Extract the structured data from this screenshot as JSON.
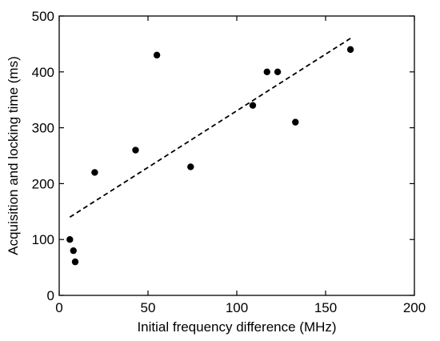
{
  "chart_data": {
    "type": "scatter",
    "title": "",
    "xlabel": "Initial frequency difference (MHz)",
    "ylabel": "Acquisition and locking time (ms)",
    "xlim": [
      0,
      200
    ],
    "ylim": [
      0,
      500
    ],
    "xticks": [
      0,
      50,
      100,
      150,
      200
    ],
    "yticks": [
      0,
      100,
      200,
      300,
      400,
      500
    ],
    "grid": false,
    "legend": "none",
    "series": [
      {
        "marker": "filled-circle",
        "color": "#000000",
        "points": [
          {
            "x": 6,
            "y": 100
          },
          {
            "x": 8,
            "y": 80
          },
          {
            "x": 9,
            "y": 60
          },
          {
            "x": 20,
            "y": 220
          },
          {
            "x": 43,
            "y": 260
          },
          {
            "x": 55,
            "y": 430
          },
          {
            "x": 74,
            "y": 230
          },
          {
            "x": 109,
            "y": 340
          },
          {
            "x": 117,
            "y": 400
          },
          {
            "x": 123,
            "y": 400
          },
          {
            "x": 133,
            "y": 310
          },
          {
            "x": 164,
            "y": 440
          }
        ]
      }
    ],
    "fit_line": {
      "style": "dashed",
      "color": "#000000",
      "points": [
        {
          "x": 6,
          "y": 140
        },
        {
          "x": 164,
          "y": 460
        }
      ]
    }
  }
}
